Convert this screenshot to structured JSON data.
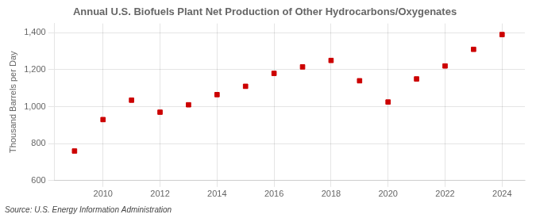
{
  "chart_data": {
    "type": "scatter",
    "title": "Annual U.S. Biofuels Plant Net Production of Other Hydrocarbons/Oxygenates",
    "ylabel": "Thousand Barrels per Day",
    "annotations": [
      "Source: U.S. Energy Information Administration"
    ],
    "x": [
      2009,
      2010,
      2011,
      2012,
      2013,
      2014,
      2015,
      2016,
      2017,
      2018,
      2019,
      2020,
      2021,
      2022,
      2023,
      2024
    ],
    "values": [
      760,
      930,
      1035,
      970,
      1010,
      1065,
      1110,
      1180,
      1215,
      1250,
      1140,
      1025,
      1150,
      1220,
      1310,
      1390
    ],
    "color": "#cc0000",
    "marker": "square",
    "xlim": [
      2008.3,
      2024.8
    ],
    "xticks": [
      2010,
      2012,
      2014,
      2016,
      2018,
      2020,
      2022,
      2024
    ],
    "ylim": [
      600,
      1450
    ],
    "yticks": [
      600,
      800,
      {
        "value": 1000,
        "label": "1,000"
      },
      {
        "value": 1200,
        "label": "1,200"
      },
      {
        "value": 1400,
        "label": "1,400"
      }
    ],
    "grid": true
  }
}
